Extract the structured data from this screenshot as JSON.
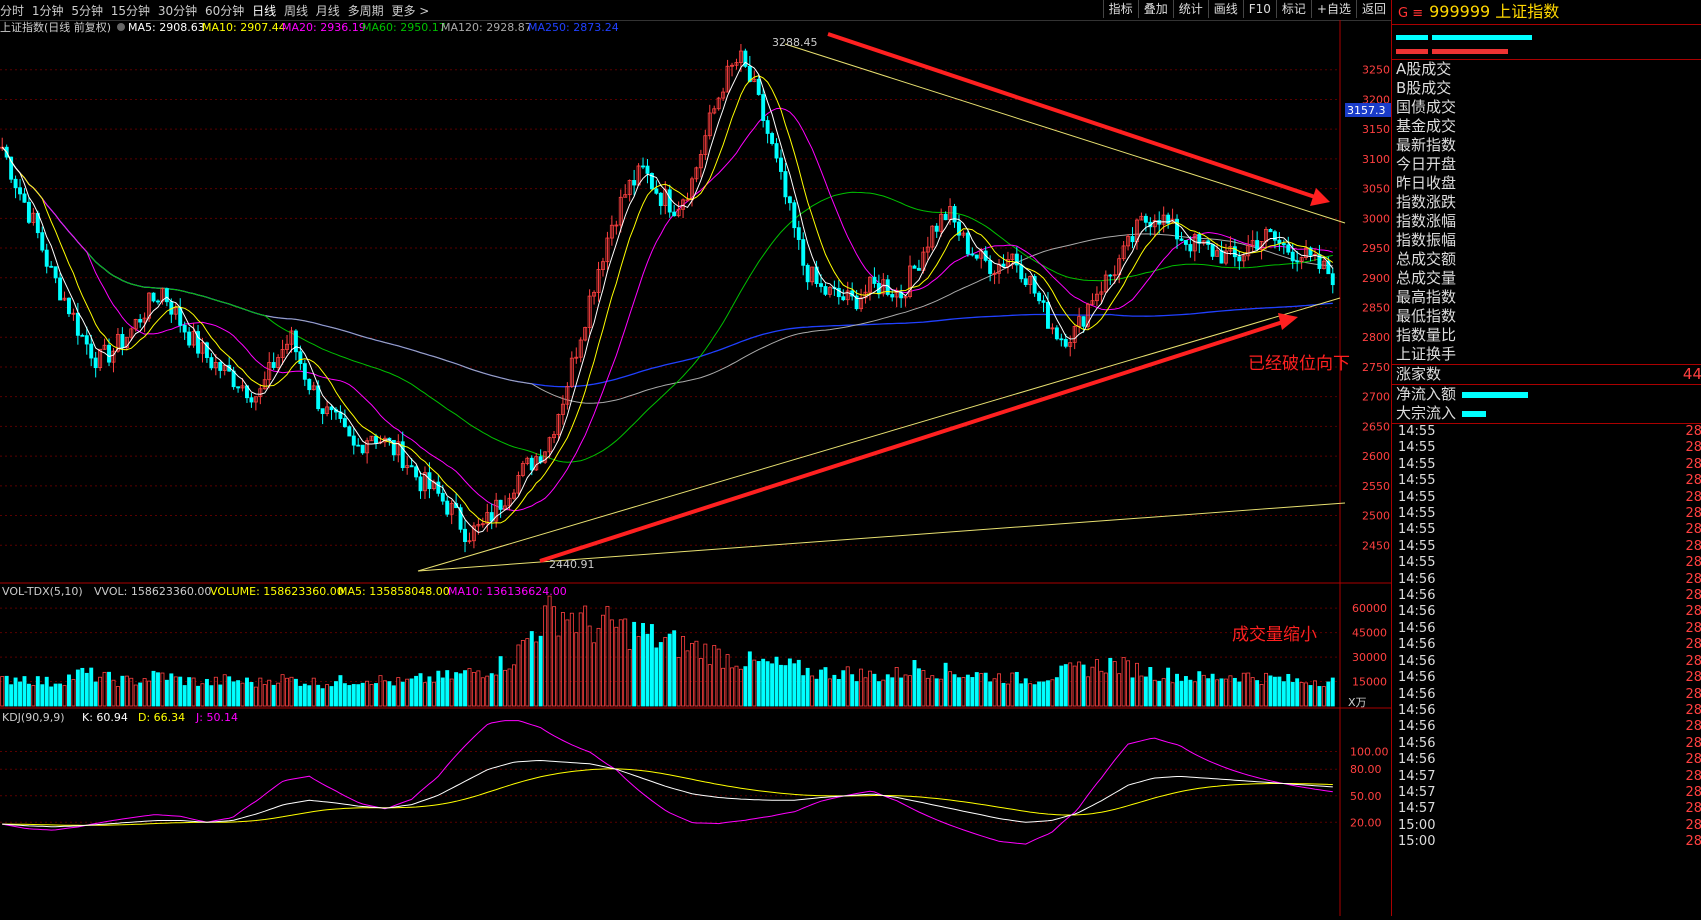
{
  "topbar": {
    "tabs": [
      "分时",
      "1分钟",
      "5分钟",
      "15分钟",
      "30分钟",
      "60分钟",
      "日线",
      "周线",
      "月线",
      "多周期",
      "更多 >"
    ],
    "active_tab": "日线",
    "tools": [
      "指标",
      "叠加",
      "统计",
      "画线",
      "F10",
      "标记",
      "+自选",
      "返回"
    ]
  },
  "main_legend": {
    "title": "上证指数(日线 前复权)",
    "ma5": "MA5: 2908.63",
    "ma10": "MA10: 2907.44",
    "ma20": "MA20: 2936.19",
    "ma60": "MA60: 2950.17",
    "ma120": "MA120: 2928.87",
    "ma250": "MA250: 2873.24"
  },
  "annotations": {
    "high": "3288.45",
    "low": "2440.91",
    "breakdown": "已经破位向下",
    "volume_shrink": "成交量缩小",
    "current_price": "3157.3",
    "vol_unit": "X万"
  },
  "vol_legend": {
    "name": "VOL-TDX(5,10)",
    "vvol": "VVOL: 158623360.00",
    "volume": "VOLUME: 158623360.00",
    "ma5": "MA5: 135858048.00",
    "ma10": "MA10: 136136624.00"
  },
  "kdj_legend": {
    "name": "KDJ(90,9,9)",
    "k": "K: 60.94",
    "d": "D: 66.34",
    "j": "J: 50.14"
  },
  "chart_data": [
    {
      "type": "candlestick",
      "title": "上证指数(日线 前复权)",
      "ylim": [
        2400,
        3300
      ],
      "yticks": [
        2450,
        2500,
        2550,
        2600,
        2650,
        2700,
        2750,
        2800,
        2850,
        2900,
        2950,
        3000,
        3050,
        3100,
        3150,
        3200,
        3250
      ],
      "close_path": [
        3120,
        3050,
        2990,
        2910,
        2860,
        2800,
        2760,
        2780,
        2810,
        2850,
        2880,
        2830,
        2790,
        2760,
        2740,
        2720,
        2700,
        2760,
        2800,
        2730,
        2680,
        2650,
        2610,
        2640,
        2620,
        2600,
        2560,
        2540,
        2510,
        2470,
        2480,
        2520,
        2560,
        2590,
        2620,
        2700,
        2800,
        2900,
        2990,
        3050,
        3080,
        3040,
        3020,
        3060,
        3150,
        3230,
        3270,
        3210,
        3120,
        3020,
        2920,
        2880,
        2870,
        2860,
        2880,
        2890,
        2870,
        2920,
        2980,
        3010,
        2960,
        2930,
        2920,
        2940,
        2900,
        2840,
        2800,
        2810,
        2870,
        2900,
        2940,
        2990,
        3010,
        2980,
        2960,
        2950,
        2940,
        2930,
        2960,
        2970,
        2950,
        2940,
        2920,
        2905
      ]
    },
    {
      "type": "bar",
      "title": "VOL-TDX(5,10)",
      "ylim": [
        0,
        65000
      ],
      "yticks": [
        15000,
        30000,
        45000,
        60000
      ],
      "volume_path": [
        15000,
        18000,
        16000,
        14000,
        17000,
        20000,
        18000,
        16000,
        15000,
        17000,
        19000,
        16000,
        15000,
        14000,
        16000,
        15000,
        14000,
        17000,
        16000,
        15000,
        14000,
        15000,
        16000,
        17000,
        15000,
        14000,
        16000,
        17000,
        18000,
        20000,
        22000,
        25000,
        30000,
        45000,
        55000,
        58000,
        52000,
        48000,
        50000,
        46000,
        44000,
        40000,
        38000,
        36000,
        34000,
        30000,
        28000,
        26000,
        25000,
        24000,
        22000,
        20000,
        21000,
        20000,
        19000,
        18000,
        20000,
        24000,
        22000,
        21000,
        20000,
        19000,
        18000,
        17000,
        16000,
        18000,
        20000,
        22000,
        24000,
        26000,
        24000,
        22000,
        20000,
        19000,
        18000,
        17000,
        18000,
        19000,
        18000,
        17000,
        16000,
        15000,
        16000,
        15000
      ]
    },
    {
      "type": "line",
      "title": "KDJ(90,9,9)",
      "ylim": [
        0,
        130
      ],
      "yticks": [
        20,
        50,
        80,
        100
      ],
      "k_path": [
        18,
        16,
        15,
        16,
        18,
        20,
        22,
        22,
        20,
        22,
        30,
        40,
        45,
        42,
        38,
        36,
        40,
        50,
        65,
        80,
        88,
        90,
        88,
        86,
        80,
        70,
        60,
        52,
        48,
        46,
        45,
        45,
        48,
        50,
        52,
        48,
        42,
        36,
        30,
        24,
        20,
        22,
        30,
        45,
        62,
        70,
        72,
        70,
        68,
        66,
        64,
        62,
        60
      ]
    }
  ],
  "right_panel": {
    "title_g": "G ≡",
    "code": "999999",
    "name": "上证指数",
    "fields": [
      "A股成交",
      "B股成交",
      "国债成交",
      "基金成交",
      "最新指数",
      "今日开盘",
      "昨日收盘",
      "指数涨跌",
      "指数涨幅",
      "指数振幅",
      "总成交额",
      "总成交量",
      "最高指数",
      "最低指数",
      "指数量比",
      "上证换手"
    ],
    "zhangjia_label": "涨家数",
    "zhangjia_value": "44",
    "net_inflow_label": "净流入额",
    "block_inflow_label": "大宗流入",
    "times": [
      "14:55",
      "14:55",
      "14:55",
      "14:55",
      "14:55",
      "14:55",
      "14:55",
      "14:55",
      "14:55",
      "14:56",
      "14:56",
      "14:56",
      "14:56",
      "14:56",
      "14:56",
      "14:56",
      "14:56",
      "14:56",
      "14:56",
      "14:56",
      "14:56",
      "14:57",
      "14:57",
      "14:57",
      "15:00",
      "15:00"
    ],
    "tick_value_prefix": "28",
    "colors": {
      "up": "#ff4040",
      "down": "#00ffff",
      "ma5": "#ffffff",
      "ma10": "#ffff00",
      "ma20": "#ff00ff",
      "ma60": "#00c000",
      "ma120": "#aaaaaa",
      "ma250": "#2040ff"
    }
  }
}
